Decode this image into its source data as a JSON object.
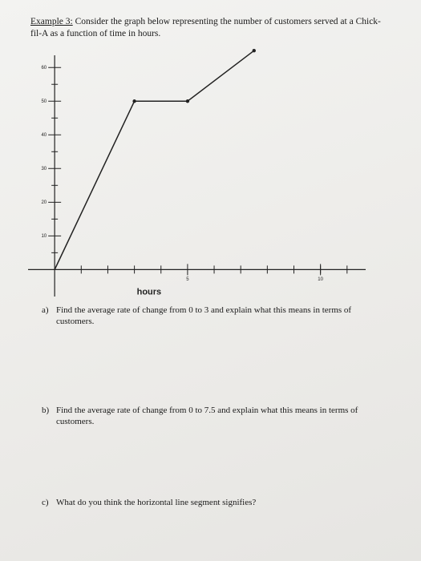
{
  "header": {
    "label": "Example 3:",
    "text": "Consider the graph below representing the number of customers served at a Chick-fil-A as a function of time in hours."
  },
  "chart_data": {
    "type": "line",
    "xlabel": "hours",
    "x": [
      0,
      3,
      5,
      7.5
    ],
    "series": [
      {
        "values": [
          0,
          50,
          50,
          65
        ],
        "color": "#222222"
      }
    ],
    "xlim": [
      -1,
      11.7
    ],
    "ylim": [
      -8,
      66
    ],
    "xticks": [
      5,
      10
    ],
    "xminorticks": [
      1,
      2,
      3,
      4,
      6,
      7,
      8,
      9,
      10,
      11
    ],
    "yticks": [
      10,
      20,
      30,
      40,
      50,
      60
    ],
    "yminorticks": [
      5,
      15,
      25,
      35,
      45,
      55
    ]
  },
  "questions": [
    {
      "label": "a)",
      "text": "Find the average rate of change from 0 to 3 and explain what this means in terms of customers."
    },
    {
      "label": "b)",
      "text": "Find the average rate of change from 0 to 7.5 and explain what this means in terms of customers."
    },
    {
      "label": "c)",
      "text": "What do you think the horizontal line segment signifies?"
    }
  ]
}
